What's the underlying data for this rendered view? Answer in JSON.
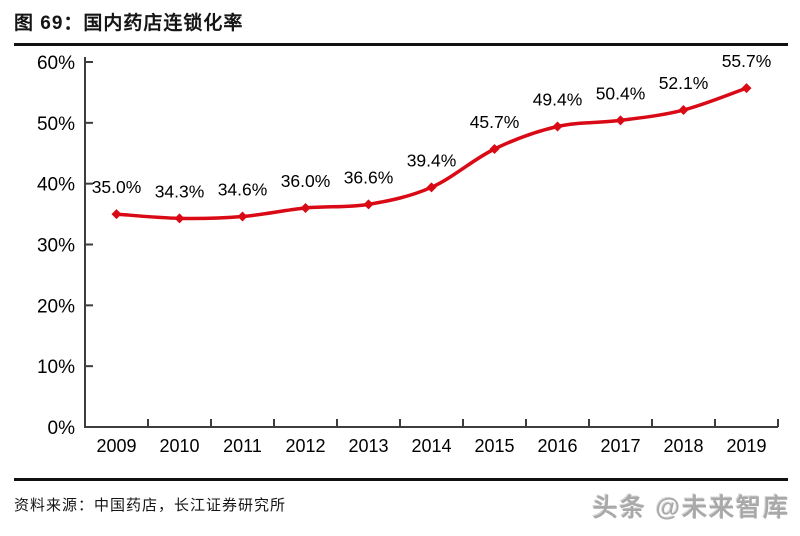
{
  "header": {
    "title": "图 69：国内药店连锁化率"
  },
  "chart_data": {
    "type": "line",
    "title": "图 69：国内药店连锁化率",
    "categories": [
      "2009",
      "2010",
      "2011",
      "2012",
      "2013",
      "2014",
      "2015",
      "2016",
      "2017",
      "2018",
      "2019"
    ],
    "values": [
      35.0,
      34.3,
      34.6,
      36.0,
      36.6,
      39.4,
      45.7,
      49.4,
      50.4,
      52.1,
      55.7
    ],
    "data_labels": [
      "35.0%",
      "34.3%",
      "34.6%",
      "36.0%",
      "36.6%",
      "39.4%",
      "45.7%",
      "49.4%",
      "50.4%",
      "52.1%",
      "55.7%"
    ],
    "xlabel": "",
    "ylabel": "",
    "ylim": [
      0,
      60
    ],
    "y_tick_step": 10,
    "y_tick_labels": [
      "0%",
      "10%",
      "20%",
      "30%",
      "40%",
      "50%",
      "60%"
    ],
    "grid": false,
    "legend": "none",
    "line_style": "smooth",
    "marker": "diamond",
    "line_color": "#d90915",
    "axis_color": "#3d3d3d",
    "label_color": "#000000"
  },
  "footer": {
    "source": "资料来源：中国药店，长江证券研究所",
    "watermark": "头条 @未来智库"
  }
}
